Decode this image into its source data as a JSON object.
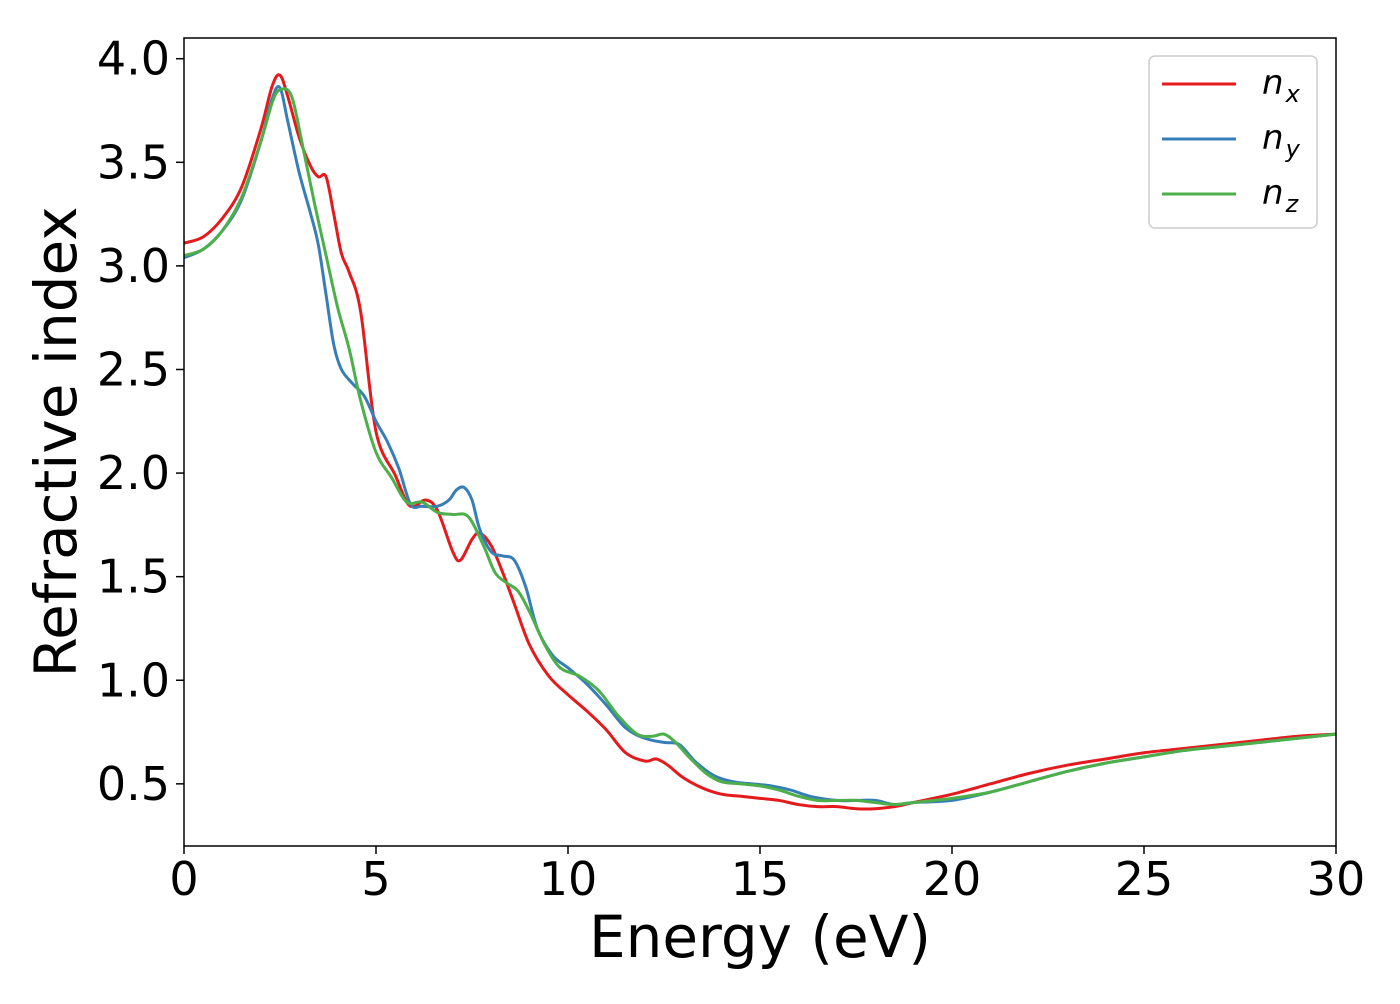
{
  "chart_data": {
    "type": "line",
    "title": "",
    "xlabel": "Energy (eV)",
    "ylabel": "Refractive index",
    "xlim": [
      0,
      30
    ],
    "ylim": [
      0.2,
      4.1
    ],
    "xticks": [
      0,
      5,
      10,
      15,
      20,
      25,
      30
    ],
    "xtick_labels": [
      "0",
      "5",
      "10",
      "15",
      "20",
      "25",
      "30"
    ],
    "yticks": [
      0.5,
      1.0,
      1.5,
      2.0,
      2.5,
      3.0,
      3.5,
      4.0
    ],
    "ytick_labels": [
      "0.5",
      "1.0",
      "1.5",
      "2.0",
      "2.5",
      "3.0",
      "3.5",
      "4.0"
    ],
    "grid": false,
    "legend_position": "top-right",
    "series": [
      {
        "name": "n_x",
        "label_base": "n",
        "label_sub": "x",
        "color": "#e41a1c",
        "x": [
          0,
          0.5,
          1.0,
          1.5,
          2.0,
          2.3,
          2.5,
          2.7,
          3.0,
          3.3,
          3.5,
          3.7,
          3.9,
          4.1,
          4.3,
          4.6,
          5.0,
          5.5,
          5.8,
          6.0,
          6.3,
          6.6,
          7.0,
          7.2,
          7.5,
          7.7,
          8.0,
          8.3,
          8.6,
          9.0,
          9.5,
          10.0,
          10.5,
          11.0,
          11.5,
          12.0,
          12.3,
          12.6,
          13.0,
          13.5,
          14.0,
          14.5,
          15.0,
          15.5,
          16.0,
          16.5,
          17.0,
          17.5,
          18.0,
          18.5,
          19.0,
          20.0,
          21.0,
          22.0,
          23.0,
          24.0,
          25.0,
          26.0,
          27.0,
          28.0,
          29.0,
          30.0
        ],
        "y": [
          3.11,
          3.14,
          3.23,
          3.38,
          3.66,
          3.87,
          3.92,
          3.82,
          3.62,
          3.48,
          3.43,
          3.43,
          3.25,
          3.06,
          2.97,
          2.78,
          2.2,
          1.99,
          1.86,
          1.84,
          1.87,
          1.82,
          1.62,
          1.58,
          1.68,
          1.71,
          1.65,
          1.52,
          1.37,
          1.17,
          1.02,
          0.93,
          0.85,
          0.76,
          0.65,
          0.61,
          0.62,
          0.59,
          0.53,
          0.48,
          0.45,
          0.44,
          0.43,
          0.42,
          0.4,
          0.39,
          0.39,
          0.38,
          0.38,
          0.39,
          0.41,
          0.45,
          0.5,
          0.55,
          0.59,
          0.62,
          0.65,
          0.67,
          0.69,
          0.71,
          0.73,
          0.74
        ]
      },
      {
        "name": "n_y",
        "label_base": "n",
        "label_sub": "y",
        "color": "#377eb8",
        "x": [
          0,
          0.5,
          1.0,
          1.5,
          2.0,
          2.3,
          2.5,
          2.7,
          3.0,
          3.3,
          3.5,
          3.7,
          3.9,
          4.1,
          4.4,
          4.7,
          5.0,
          5.3,
          5.6,
          5.9,
          6.2,
          6.6,
          6.9,
          7.1,
          7.3,
          7.5,
          7.7,
          8.0,
          8.3,
          8.6,
          8.9,
          9.2,
          9.6,
          10.0,
          10.5,
          11.0,
          11.5,
          12.0,
          12.5,
          12.9,
          13.3,
          13.8,
          14.3,
          14.8,
          15.3,
          15.8,
          16.3,
          17.0,
          17.5,
          18.0,
          18.5,
          19.0,
          20.0,
          21.0,
          22.0,
          23.0,
          24.0,
          25.0,
          26.0,
          27.0,
          28.0,
          29.0,
          30.0
        ],
        "y": [
          3.04,
          3.08,
          3.17,
          3.32,
          3.6,
          3.81,
          3.86,
          3.7,
          3.45,
          3.25,
          3.1,
          2.86,
          2.62,
          2.5,
          2.43,
          2.37,
          2.25,
          2.15,
          2.02,
          1.85,
          1.84,
          1.84,
          1.87,
          1.92,
          1.93,
          1.87,
          1.73,
          1.62,
          1.6,
          1.58,
          1.45,
          1.25,
          1.12,
          1.06,
          0.98,
          0.88,
          0.77,
          0.72,
          0.7,
          0.69,
          0.61,
          0.54,
          0.51,
          0.5,
          0.49,
          0.47,
          0.44,
          0.42,
          0.42,
          0.42,
          0.4,
          0.41,
          0.42,
          0.46,
          0.51,
          0.56,
          0.6,
          0.63,
          0.66,
          0.68,
          0.7,
          0.72,
          0.74
        ]
      },
      {
        "name": "n_z",
        "label_base": "n",
        "label_sub": "z",
        "color": "#4daf4a",
        "x": [
          0,
          0.5,
          1.0,
          1.5,
          2.0,
          2.3,
          2.5,
          2.8,
          3.1,
          3.4,
          3.7,
          4.0,
          4.3,
          4.6,
          5.0,
          5.4,
          5.8,
          6.2,
          6.6,
          7.0,
          7.4,
          7.8,
          8.1,
          8.4,
          8.7,
          9.0,
          9.4,
          9.8,
          10.3,
          10.8,
          11.3,
          11.8,
          12.2,
          12.5,
          12.8,
          13.2,
          13.6,
          14.0,
          14.5,
          15.0,
          15.5,
          16.0,
          16.5,
          17.0,
          17.5,
          18.0,
          18.5,
          19.0,
          20.0,
          21.0,
          22.0,
          23.0,
          24.0,
          25.0,
          26.0,
          27.0,
          28.0,
          29.0,
          30.0
        ],
        "y": [
          3.05,
          3.08,
          3.17,
          3.33,
          3.6,
          3.79,
          3.85,
          3.82,
          3.57,
          3.3,
          3.05,
          2.8,
          2.6,
          2.35,
          2.1,
          1.98,
          1.86,
          1.86,
          1.81,
          1.8,
          1.79,
          1.65,
          1.52,
          1.47,
          1.43,
          1.33,
          1.17,
          1.06,
          1.02,
          0.95,
          0.83,
          0.74,
          0.73,
          0.74,
          0.7,
          0.62,
          0.55,
          0.51,
          0.5,
          0.49,
          0.47,
          0.44,
          0.42,
          0.42,
          0.42,
          0.41,
          0.4,
          0.41,
          0.43,
          0.46,
          0.51,
          0.56,
          0.6,
          0.63,
          0.66,
          0.68,
          0.7,
          0.72,
          0.74
        ]
      }
    ]
  }
}
